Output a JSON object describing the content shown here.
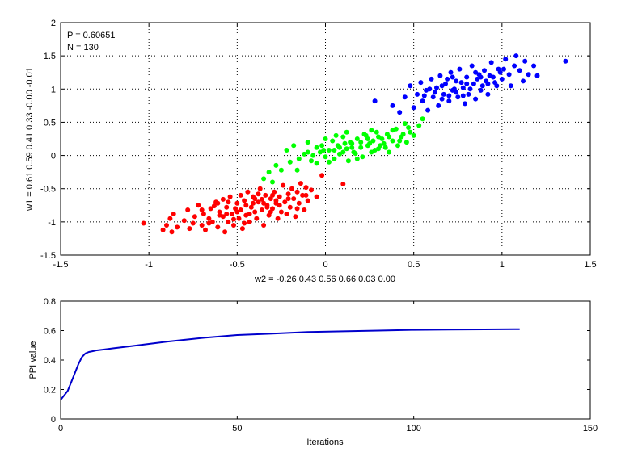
{
  "chart_data": [
    {
      "type": "scatter",
      "title": "",
      "xlabel": "w2 = -0.26  0.43  0.56  0.66  0.03  0.00",
      "ylabel": "w1 = 0.61  0.59  0.41  0.33  -0.00  -0.01",
      "xlim": [
        -1.5,
        1.5
      ],
      "ylim": [
        -1.5,
        2
      ],
      "xticks": [
        "-1.5",
        "-1",
        "-0.5",
        "0",
        "0.5",
        "1",
        "1.5"
      ],
      "yticks": [
        "-1.5",
        "-1",
        "-0.5",
        "0",
        "0.5",
        "1",
        "1.5",
        "2"
      ],
      "grid": true,
      "annotations": [
        "P = 0.60651",
        "N = 130"
      ],
      "series": [
        {
          "color": "#ff0000",
          "points": [
            [
              -1.03,
              -1.02
            ],
            [
              -0.92,
              -1.12
            ],
            [
              -0.9,
              -1.05
            ],
            [
              -0.88,
              -0.95
            ],
            [
              -0.87,
              -1.15
            ],
            [
              -0.86,
              -0.88
            ],
            [
              -0.84,
              -1.08
            ],
            [
              -0.8,
              -0.98
            ],
            [
              -0.78,
              -0.82
            ],
            [
              -0.77,
              -1.1
            ],
            [
              -0.75,
              -1.02
            ],
            [
              -0.74,
              -0.92
            ],
            [
              -0.72,
              -0.75
            ],
            [
              -0.7,
              -1.05
            ],
            [
              -0.69,
              -0.88
            ],
            [
              -0.68,
              -1.12
            ],
            [
              -0.66,
              -0.95
            ],
            [
              -0.65,
              -0.8
            ],
            [
              -0.64,
              -1.0
            ],
            [
              -0.62,
              -0.7
            ],
            [
              -0.61,
              -1.08
            ],
            [
              -0.6,
              -0.85
            ],
            [
              -0.58,
              -0.92
            ],
            [
              -0.57,
              -1.15
            ],
            [
              -0.56,
              -0.78
            ],
            [
              -0.55,
              -1.0
            ],
            [
              -0.54,
              -0.62
            ],
            [
              -0.53,
              -0.88
            ],
            [
              -0.52,
              -1.05
            ],
            [
              -0.5,
              -0.72
            ],
            [
              -0.49,
              -0.95
            ],
            [
              -0.48,
              -0.82
            ],
            [
              -0.47,
              -1.1
            ],
            [
              -0.46,
              -0.68
            ],
            [
              -0.45,
              -0.9
            ],
            [
              -0.44,
              -0.55
            ],
            [
              -0.43,
              -1.0
            ],
            [
              -0.42,
              -0.78
            ],
            [
              -0.41,
              -0.62
            ],
            [
              -0.4,
              -0.85
            ],
            [
              -0.39,
              -0.95
            ],
            [
              -0.38,
              -0.7
            ],
            [
              -0.37,
              -0.5
            ],
            [
              -0.36,
              -0.82
            ],
            [
              -0.35,
              -1.05
            ],
            [
              -0.34,
              -0.6
            ],
            [
              -0.33,
              -0.75
            ],
            [
              -0.32,
              -0.9
            ],
            [
              -0.31,
              -0.65
            ],
            [
              -0.3,
              -0.8
            ],
            [
              -0.29,
              -0.55
            ],
            [
              -0.28,
              -0.72
            ],
            [
              -0.27,
              -0.95
            ],
            [
              -0.26,
              -0.62
            ],
            [
              -0.25,
              -0.85
            ],
            [
              -0.24,
              -0.45
            ],
            [
              -0.23,
              -0.7
            ],
            [
              -0.22,
              -0.88
            ],
            [
              -0.21,
              -0.58
            ],
            [
              -0.2,
              -0.78
            ],
            [
              -0.19,
              -0.5
            ],
            [
              -0.18,
              -0.65
            ],
            [
              -0.17,
              -0.92
            ],
            [
              -0.16,
              -0.55
            ],
            [
              -0.15,
              -0.72
            ],
            [
              -0.14,
              -0.42
            ],
            [
              -0.13,
              -0.6
            ],
            [
              -0.12,
              -0.82
            ],
            [
              -0.11,
              -0.48
            ],
            [
              -0.1,
              -0.68
            ],
            [
              -0.08,
              -0.52
            ],
            [
              -0.05,
              -0.62
            ],
            [
              -0.02,
              -0.3
            ],
            [
              0.1,
              -0.43
            ],
            [
              -0.6,
              -0.9
            ],
            [
              -0.55,
              -0.7
            ],
            [
              -0.5,
              -0.85
            ],
            [
              -0.45,
              -0.75
            ],
            [
              -0.4,
              -0.65
            ],
            [
              -0.35,
              -0.72
            ],
            [
              -0.3,
              -0.6
            ],
            [
              -0.28,
              -0.68
            ],
            [
              -0.33,
              -0.78
            ],
            [
              -0.63,
              -0.76
            ],
            [
              -0.58,
              -0.66
            ],
            [
              -0.52,
              -0.96
            ],
            [
              -0.48,
              -0.6
            ],
            [
              -0.43,
              -0.88
            ],
            [
              -0.38,
              -0.58
            ],
            [
              -0.7,
              -0.82
            ],
            [
              -0.66,
              -1.02
            ],
            [
              -0.61,
              -0.72
            ],
            [
              -0.56,
              -0.88
            ],
            [
              -0.51,
              -0.8
            ],
            [
              -0.46,
              -1.02
            ],
            [
              -0.41,
              -0.72
            ],
            [
              -0.36,
              -0.66
            ],
            [
              -0.31,
              -0.85
            ],
            [
              -0.26,
              -0.75
            ],
            [
              -0.21,
              -0.65
            ],
            [
              -0.16,
              -0.8
            ],
            [
              -0.11,
              -0.6
            ]
          ]
        },
        {
          "color": "#00ff00",
          "points": [
            [
              -0.35,
              -0.35
            ],
            [
              -0.32,
              -0.25
            ],
            [
              -0.3,
              -0.4
            ],
            [
              -0.28,
              -0.15
            ],
            [
              -0.25,
              -0.22
            ],
            [
              -0.22,
              0.08
            ],
            [
              -0.2,
              -0.1
            ],
            [
              -0.18,
              0.15
            ],
            [
              -0.15,
              -0.05
            ],
            [
              -0.12,
              0.02
            ],
            [
              -0.1,
              0.2
            ],
            [
              -0.08,
              -0.08
            ],
            [
              -0.05,
              0.12
            ],
            [
              -0.03,
              0.05
            ],
            [
              0.0,
              0.25
            ],
            [
              0.0,
              -0.02
            ],
            [
              0.02,
              0.08
            ],
            [
              0.04,
              0.22
            ],
            [
              0.05,
              -0.05
            ],
            [
              0.07,
              0.15
            ],
            [
              0.08,
              0.02
            ],
            [
              0.1,
              0.28
            ],
            [
              0.12,
              0.1
            ],
            [
              0.13,
              -0.08
            ],
            [
              0.15,
              0.18
            ],
            [
              0.16,
              0.05
            ],
            [
              0.18,
              0.25
            ],
            [
              0.2,
              0.12
            ],
            [
              0.21,
              -0.02
            ],
            [
              0.23,
              0.3
            ],
            [
              0.24,
              0.15
            ],
            [
              0.26,
              0.05
            ],
            [
              0.27,
              0.22
            ],
            [
              0.29,
              0.35
            ],
            [
              0.3,
              0.1
            ],
            [
              0.32,
              0.25
            ],
            [
              0.33,
              0.18
            ],
            [
              0.35,
              0.32
            ],
            [
              0.36,
              0.05
            ],
            [
              0.38,
              0.22
            ],
            [
              0.4,
              0.4
            ],
            [
              0.41,
              0.15
            ],
            [
              0.43,
              0.28
            ],
            [
              0.45,
              0.48
            ],
            [
              0.46,
              0.2
            ],
            [
              0.48,
              0.35
            ],
            [
              0.5,
              0.3
            ],
            [
              0.53,
              0.45
            ],
            [
              0.55,
              0.55
            ],
            [
              0.05,
              0.08
            ],
            [
              0.1,
              0.05
            ],
            [
              0.15,
              0.12
            ],
            [
              0.2,
              0.2
            ],
            [
              0.25,
              0.18
            ],
            [
              0.3,
              0.28
            ],
            [
              0.02,
              -0.1
            ],
            [
              0.08,
              0.12
            ],
            [
              -0.02,
              0.15
            ],
            [
              0.18,
              -0.05
            ],
            [
              0.22,
              0.32
            ],
            [
              0.28,
              0.08
            ],
            [
              0.34,
              0.12
            ],
            [
              0.38,
              0.38
            ],
            [
              0.42,
              0.22
            ],
            [
              -0.1,
              0.05
            ],
            [
              -0.05,
              -0.12
            ],
            [
              0.12,
              0.35
            ],
            [
              0.17,
              0.03
            ],
            [
              0.26,
              0.38
            ],
            [
              0.31,
              0.15
            ],
            [
              0.44,
              0.32
            ],
            [
              0.14,
              0.2
            ],
            [
              0.06,
              0.3
            ],
            [
              0.11,
              0.18
            ],
            [
              0.24,
              0.25
            ],
            [
              -0.16,
              -0.22
            ],
            [
              -0.07,
              0.0
            ],
            [
              -0.01,
              0.08
            ],
            [
              0.36,
              0.28
            ],
            [
              0.47,
              0.42
            ]
          ]
        },
        {
          "color": "#0000ff",
          "points": [
            [
              0.28,
              0.82
            ],
            [
              0.38,
              0.75
            ],
            [
              0.42,
              0.65
            ],
            [
              0.45,
              0.88
            ],
            [
              0.48,
              1.05
            ],
            [
              0.5,
              0.72
            ],
            [
              0.52,
              0.92
            ],
            [
              0.54,
              1.1
            ],
            [
              0.55,
              0.82
            ],
            [
              0.57,
              0.98
            ],
            [
              0.58,
              0.68
            ],
            [
              0.6,
              1.15
            ],
            [
              0.61,
              0.88
            ],
            [
              0.63,
              1.02
            ],
            [
              0.64,
              0.75
            ],
            [
              0.65,
              1.2
            ],
            [
              0.67,
              0.92
            ],
            [
              0.68,
              1.08
            ],
            [
              0.7,
              0.82
            ],
            [
              0.71,
              1.25
            ],
            [
              0.72,
              0.98
            ],
            [
              0.74,
              1.12
            ],
            [
              0.75,
              0.88
            ],
            [
              0.76,
              1.3
            ],
            [
              0.78,
              1.02
            ],
            [
              0.79,
              0.78
            ],
            [
              0.8,
              1.18
            ],
            [
              0.81,
              0.92
            ],
            [
              0.83,
              1.35
            ],
            [
              0.84,
              1.08
            ],
            [
              0.85,
              0.85
            ],
            [
              0.87,
              1.22
            ],
            [
              0.88,
              0.98
            ],
            [
              0.9,
              1.28
            ],
            [
              0.91,
              1.12
            ],
            [
              0.92,
              0.92
            ],
            [
              0.94,
              1.4
            ],
            [
              0.95,
              1.18
            ],
            [
              0.97,
              1.05
            ],
            [
              0.98,
              1.3
            ],
            [
              1.0,
              1.15
            ],
            [
              1.02,
              1.45
            ],
            [
              1.04,
              1.22
            ],
            [
              1.05,
              1.05
            ],
            [
              1.07,
              1.35
            ],
            [
              1.08,
              1.5
            ],
            [
              1.1,
              1.28
            ],
            [
              1.12,
              1.12
            ],
            [
              1.13,
              1.42
            ],
            [
              1.15,
              1.22
            ],
            [
              1.18,
              1.35
            ],
            [
              1.2,
              1.2
            ],
            [
              1.36,
              1.42
            ],
            [
              0.62,
              0.95
            ],
            [
              0.66,
              1.05
            ],
            [
              0.7,
              0.9
            ],
            [
              0.73,
              1.0
            ],
            [
              0.77,
              1.1
            ],
            [
              0.82,
              1.0
            ],
            [
              0.86,
              1.15
            ],
            [
              0.89,
              1.05
            ],
            [
              0.93,
              1.2
            ],
            [
              0.96,
              1.1
            ],
            [
              0.99,
              1.25
            ],
            [
              0.56,
              0.9
            ],
            [
              0.59,
              1.0
            ],
            [
              0.69,
              1.15
            ],
            [
              0.78,
              0.9
            ],
            [
              0.85,
              1.25
            ],
            [
              0.92,
              1.08
            ],
            [
              1.01,
              1.3
            ],
            [
              0.74,
              0.95
            ],
            [
              0.8,
              1.08
            ],
            [
              0.88,
              1.18
            ],
            [
              0.66,
              0.85
            ],
            [
              0.72,
              1.18
            ]
          ]
        }
      ]
    },
    {
      "type": "line",
      "title": "",
      "xlabel": "Iterations",
      "ylabel": "PPI value",
      "xlim": [
        0,
        150
      ],
      "ylim": [
        0,
        0.8
      ],
      "xticks": [
        "0",
        "50",
        "100",
        "150"
      ],
      "yticks": [
        "0",
        "0.2",
        "0.4",
        "0.6",
        "0.8"
      ],
      "grid": false,
      "series": [
        {
          "color": "#0000cc",
          "x": [
            0,
            1,
            2,
            3,
            4,
            5,
            6,
            7,
            8,
            9,
            10,
            15,
            20,
            30,
            40,
            50,
            60,
            70,
            80,
            90,
            100,
            110,
            120,
            130
          ],
          "y": [
            0.13,
            0.16,
            0.19,
            0.25,
            0.31,
            0.37,
            0.42,
            0.445,
            0.455,
            0.46,
            0.465,
            0.48,
            0.495,
            0.525,
            0.55,
            0.57,
            0.58,
            0.59,
            0.595,
            0.6,
            0.605,
            0.607,
            0.608,
            0.61
          ]
        }
      ]
    }
  ]
}
